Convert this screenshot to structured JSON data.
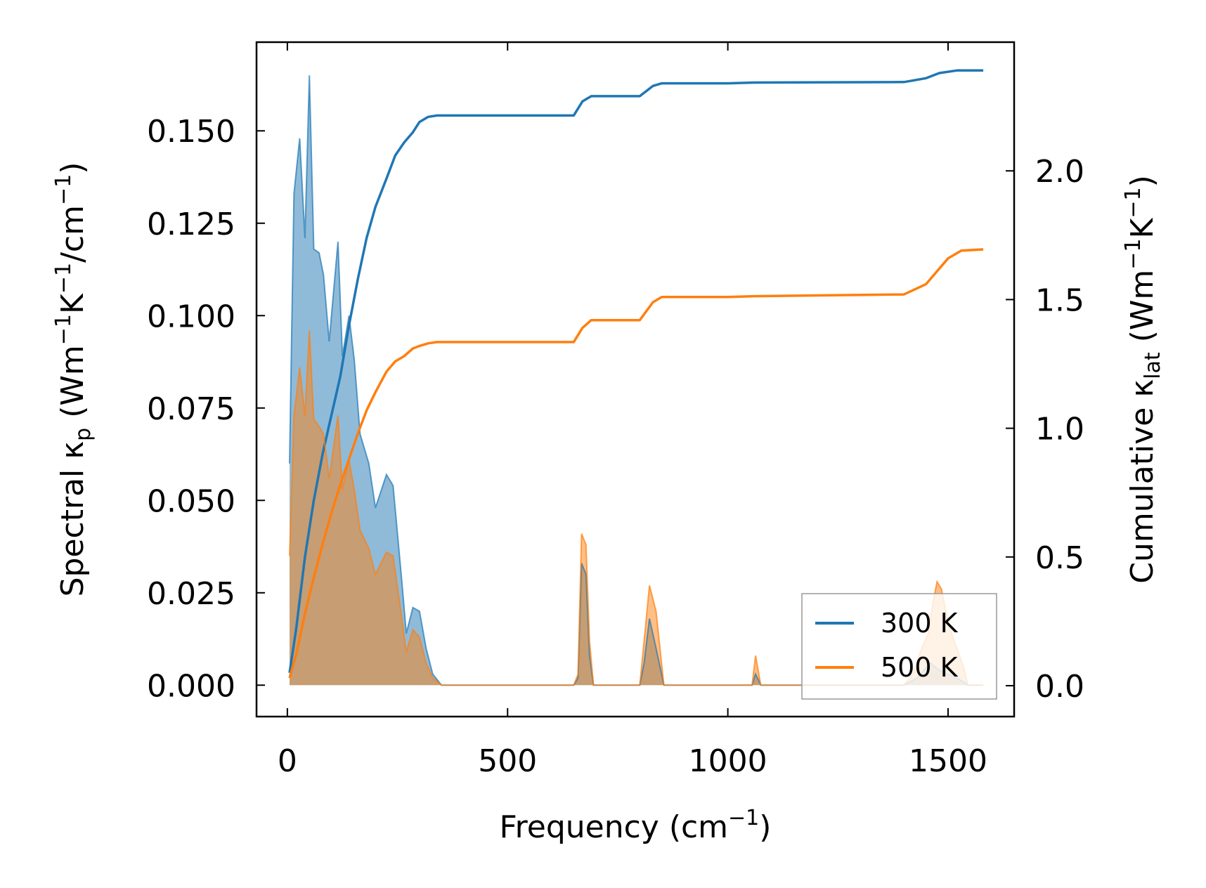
{
  "chart_data": {
    "type": "area",
    "xlabel": "Frequency (cm",
    "xlabel_sup": "−1",
    "xlabel_end": ")",
    "ylabel_left_parts": [
      {
        "t": "Spectral κ",
        "k": "n"
      },
      {
        "t": "p",
        "k": "sub"
      },
      {
        "t": " (Wm",
        "k": "n"
      },
      {
        "t": "−1",
        "k": "sup"
      },
      {
        "t": "K",
        "k": "n"
      },
      {
        "t": "−1",
        "k": "sup"
      },
      {
        "t": "/cm",
        "k": "n"
      },
      {
        "t": "−1",
        "k": "sup"
      },
      {
        "t": ")",
        "k": "n"
      }
    ],
    "ylabel_right_parts": [
      {
        "t": "Cumulative κ",
        "k": "n"
      },
      {
        "t": "lat",
        "k": "sub"
      },
      {
        "t": " (Wm",
        "k": "n"
      },
      {
        "t": "−1",
        "k": "sup"
      },
      {
        "t": "K",
        "k": "n"
      },
      {
        "t": "−1",
        "k": "sup"
      },
      {
        "t": ")",
        "k": "n"
      }
    ],
    "xlim": [
      -70,
      1650
    ],
    "ylim_left": [
      -0.0085,
      0.174
    ],
    "ylim_right": [
      -0.12,
      2.5
    ],
    "x_ticks": [
      0,
      500,
      1000,
      1500
    ],
    "x_tick_labels": [
      "0",
      "500",
      "1000",
      "1500"
    ],
    "y_left_ticks": [
      0.0,
      0.025,
      0.05,
      0.075,
      0.1,
      0.125,
      0.15
    ],
    "y_left_tick_labels": [
      "0.000",
      "0.025",
      "0.050",
      "0.075",
      "0.100",
      "0.125",
      "0.150"
    ],
    "y_right_ticks": [
      0.0,
      0.5,
      1.0,
      1.5,
      2.0
    ],
    "y_right_tick_labels": [
      "0.0",
      "0.5",
      "1.0",
      "1.5",
      "2.0"
    ],
    "legend": {
      "position": "lower-right",
      "entries": [
        "300 K",
        "500 K"
      ]
    },
    "series": [
      {
        "name": "300 K",
        "color": "#1f77b4",
        "spectral": [
          [
            5,
            0.06
          ],
          [
            15,
            0.133
          ],
          [
            28,
            0.148
          ],
          [
            40,
            0.121
          ],
          [
            50,
            0.165
          ],
          [
            60,
            0.118
          ],
          [
            72,
            0.117
          ],
          [
            82,
            0.111
          ],
          [
            95,
            0.093
          ],
          [
            115,
            0.12
          ],
          [
            125,
            0.089
          ],
          [
            140,
            0.1
          ],
          [
            152,
            0.088
          ],
          [
            165,
            0.068
          ],
          [
            185,
            0.06
          ],
          [
            200,
            0.048
          ],
          [
            225,
            0.057
          ],
          [
            240,
            0.054
          ],
          [
            260,
            0.028
          ],
          [
            270,
            0.014
          ],
          [
            285,
            0.021
          ],
          [
            300,
            0.02
          ],
          [
            315,
            0.01
          ],
          [
            330,
            0.003
          ],
          [
            350,
            0.0
          ],
          [
            650,
            0.0
          ],
          [
            660,
            0.002
          ],
          [
            668,
            0.033
          ],
          [
            678,
            0.03
          ],
          [
            686,
            0.008
          ],
          [
            695,
            0.0
          ],
          [
            800,
            0.0
          ],
          [
            810,
            0.006
          ],
          [
            822,
            0.018
          ],
          [
            837,
            0.01
          ],
          [
            855,
            0.0
          ],
          [
            1055,
            0.0
          ],
          [
            1063,
            0.003
          ],
          [
            1075,
            0.0
          ],
          [
            1400,
            0.0
          ],
          [
            1430,
            0.002
          ],
          [
            1460,
            0.006
          ],
          [
            1480,
            0.004
          ],
          [
            1500,
            0.003
          ],
          [
            1520,
            0.002
          ],
          [
            1545,
            0.0
          ],
          [
            1580,
            0.0
          ]
        ],
        "cumulative": [
          [
            5,
            0.05
          ],
          [
            20,
            0.22
          ],
          [
            40,
            0.5
          ],
          [
            60,
            0.72
          ],
          [
            80,
            0.9
          ],
          [
            100,
            1.05
          ],
          [
            120,
            1.2
          ],
          [
            140,
            1.4
          ],
          [
            160,
            1.58
          ],
          [
            180,
            1.74
          ],
          [
            200,
            1.86
          ],
          [
            225,
            1.97
          ],
          [
            245,
            2.06
          ],
          [
            265,
            2.11
          ],
          [
            285,
            2.15
          ],
          [
            300,
            2.19
          ],
          [
            320,
            2.21
          ],
          [
            340,
            2.215
          ],
          [
            650,
            2.215
          ],
          [
            670,
            2.27
          ],
          [
            690,
            2.29
          ],
          [
            800,
            2.29
          ],
          [
            830,
            2.33
          ],
          [
            850,
            2.34
          ],
          [
            1000,
            2.34
          ],
          [
            1060,
            2.343
          ],
          [
            1400,
            2.345
          ],
          [
            1450,
            2.36
          ],
          [
            1480,
            2.38
          ],
          [
            1520,
            2.39
          ],
          [
            1580,
            2.39
          ]
        ]
      },
      {
        "name": "500 K",
        "color": "#ff7f0e",
        "spectral": [
          [
            5,
            0.035
          ],
          [
            15,
            0.073
          ],
          [
            28,
            0.086
          ],
          [
            40,
            0.073
          ],
          [
            50,
            0.096
          ],
          [
            60,
            0.072
          ],
          [
            72,
            0.07
          ],
          [
            82,
            0.068
          ],
          [
            95,
            0.056
          ],
          [
            115,
            0.073
          ],
          [
            125,
            0.053
          ],
          [
            140,
            0.061
          ],
          [
            152,
            0.053
          ],
          [
            165,
            0.042
          ],
          [
            185,
            0.037
          ],
          [
            200,
            0.03
          ],
          [
            225,
            0.036
          ],
          [
            240,
            0.035
          ],
          [
            260,
            0.018
          ],
          [
            270,
            0.009
          ],
          [
            285,
            0.015
          ],
          [
            300,
            0.013
          ],
          [
            315,
            0.006
          ],
          [
            330,
            0.002
          ],
          [
            350,
            0.0
          ],
          [
            650,
            0.0
          ],
          [
            660,
            0.003
          ],
          [
            668,
            0.041
          ],
          [
            678,
            0.038
          ],
          [
            686,
            0.012
          ],
          [
            695,
            0.0
          ],
          [
            800,
            0.0
          ],
          [
            810,
            0.012
          ],
          [
            822,
            0.027
          ],
          [
            837,
            0.02
          ],
          [
            855,
            0.0
          ],
          [
            1055,
            0.0
          ],
          [
            1063,
            0.008
          ],
          [
            1075,
            0.0
          ],
          [
            1400,
            0.0
          ],
          [
            1420,
            0.003
          ],
          [
            1440,
            0.01
          ],
          [
            1455,
            0.014
          ],
          [
            1465,
            0.022
          ],
          [
            1475,
            0.028
          ],
          [
            1485,
            0.026
          ],
          [
            1495,
            0.02
          ],
          [
            1505,
            0.015
          ],
          [
            1520,
            0.01
          ],
          [
            1535,
            0.005
          ],
          [
            1545,
            0.0
          ],
          [
            1580,
            0.0
          ]
        ],
        "cumulative": [
          [
            5,
            0.03
          ],
          [
            20,
            0.12
          ],
          [
            40,
            0.28
          ],
          [
            60,
            0.42
          ],
          [
            80,
            0.55
          ],
          [
            100,
            0.67
          ],
          [
            120,
            0.78
          ],
          [
            140,
            0.88
          ],
          [
            160,
            0.98
          ],
          [
            180,
            1.07
          ],
          [
            200,
            1.14
          ],
          [
            225,
            1.22
          ],
          [
            245,
            1.26
          ],
          [
            265,
            1.28
          ],
          [
            285,
            1.31
          ],
          [
            300,
            1.32
          ],
          [
            320,
            1.33
          ],
          [
            340,
            1.335
          ],
          [
            650,
            1.335
          ],
          [
            670,
            1.39
          ],
          [
            690,
            1.42
          ],
          [
            800,
            1.42
          ],
          [
            830,
            1.49
          ],
          [
            850,
            1.51
          ],
          [
            1000,
            1.51
          ],
          [
            1060,
            1.513
          ],
          [
            1400,
            1.52
          ],
          [
            1450,
            1.56
          ],
          [
            1480,
            1.62
          ],
          [
            1500,
            1.66
          ],
          [
            1530,
            1.69
          ],
          [
            1580,
            1.695
          ]
        ]
      }
    ]
  }
}
